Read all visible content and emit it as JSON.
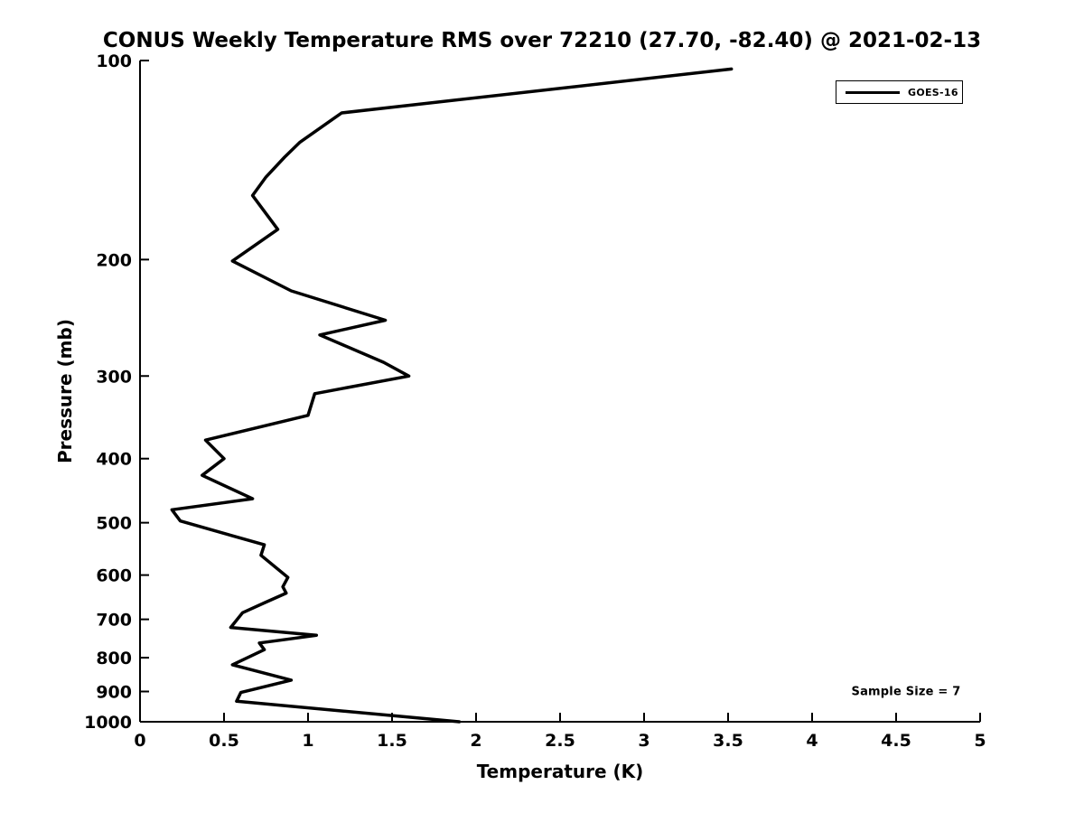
{
  "page": {
    "background": "#ffffff",
    "text_color": "#000000"
  },
  "chart_data": {
    "type": "line",
    "title": "CONUS Weekly Temperature RMS over 72210 (27.70, -82.40) @ 2021-02-13",
    "xlabel": "Temperature (K)",
    "ylabel": "Pressure (mb)",
    "xlim": [
      0,
      5
    ],
    "xticks": [
      0,
      0.5,
      1,
      1.5,
      2,
      2.5,
      3,
      3.5,
      4,
      4.5,
      5
    ],
    "xtick_labels": [
      "0",
      "0.5",
      "1",
      "1.5",
      "2",
      "2.5",
      "3",
      "3.5",
      "4",
      "4.5",
      "5"
    ],
    "yscale": "log",
    "ylim": [
      100,
      1000
    ],
    "y_increases_downward": true,
    "yticks": [
      100,
      200,
      300,
      400,
      500,
      600,
      700,
      800,
      900,
      1000
    ],
    "ytick_labels": [
      "100",
      "200",
      "300",
      "400",
      "500",
      "600",
      "700",
      "800",
      "900",
      "1000"
    ],
    "grid": false,
    "line_color": "#000000",
    "legend": {
      "position": "upper right",
      "entries": [
        {
          "label": "GOES-16",
          "color": "#000000"
        }
      ]
    },
    "annotations": [
      {
        "text": "Sample Size = 7"
      }
    ],
    "series": [
      {
        "name": "GOES-16",
        "color": "#000000",
        "pressure_mb": [
          103,
          120,
          133,
          140,
          150,
          160,
          180,
          201,
          223,
          247,
          260,
          286,
          300,
          319,
          344,
          375,
          400,
          424,
          460,
          478,
          497,
          540,
          560,
          605,
          625,
          639,
          661,
          684,
          720,
          740,
          760,
          778,
          820,
          865,
          903,
          931,
          1000
        ],
        "temperature_k": [
          3.52,
          1.2,
          0.95,
          0.86,
          0.75,
          0.67,
          0.82,
          0.55,
          0.9,
          1.46,
          1.07,
          1.45,
          1.6,
          1.04,
          1.0,
          0.39,
          0.5,
          0.37,
          0.67,
          0.19,
          0.24,
          0.74,
          0.72,
          0.88,
          0.85,
          0.87,
          0.74,
          0.61,
          0.54,
          1.05,
          0.71,
          0.74,
          0.55,
          0.9,
          0.6,
          0.575,
          1.9
        ]
      }
    ]
  }
}
